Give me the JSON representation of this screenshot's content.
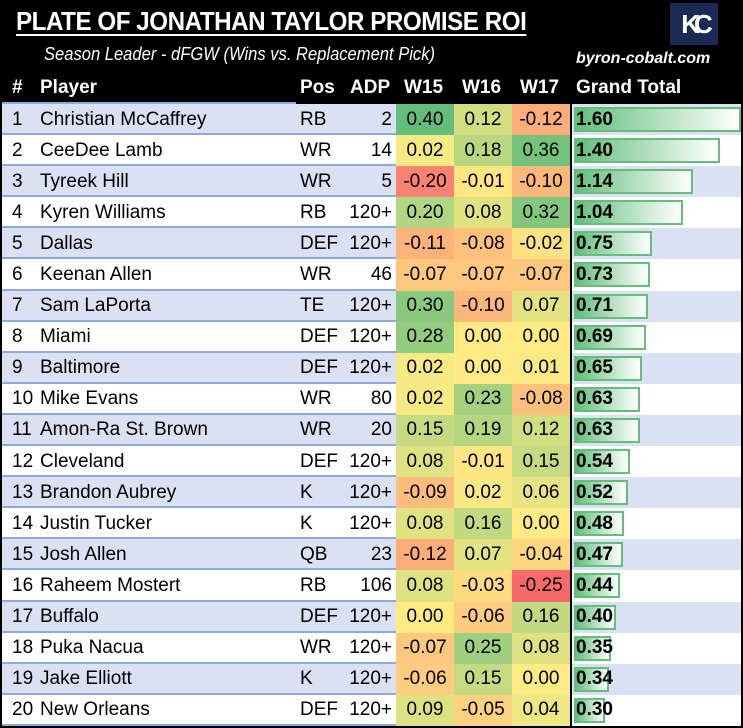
{
  "title": "PLATE OF JONATHAN TAYLOR PROMISE ROI",
  "subtitle": "Season Leader - dFGW (Wins vs. Replacement Pick)",
  "site": "byron-cobalt.com",
  "logo": "KC",
  "columns": [
    "#",
    "Player",
    "Pos",
    "ADP",
    "W15",
    "W16",
    "W17",
    "Grand Total"
  ],
  "colors": {
    "red": "#f8696b",
    "yellow": "#ffeb84",
    "green": "#63be7b",
    "row_alt": "#d9e1f2"
  },
  "rows": [
    [
      "1",
      "Christian McCaffrey",
      "RB",
      "2",
      "0.40",
      "0.12",
      "-0.12",
      "1.60"
    ],
    [
      "2",
      "CeeDee Lamb",
      "WR",
      "14",
      "0.02",
      "0.18",
      "0.36",
      "1.40"
    ],
    [
      "3",
      "Tyreek Hill",
      "WR",
      "5",
      "-0.20",
      "-0.01",
      "-0.10",
      "1.14"
    ],
    [
      "4",
      "Kyren Williams",
      "RB",
      "120+",
      "0.20",
      "0.08",
      "0.32",
      "1.04"
    ],
    [
      "5",
      "Dallas",
      "DEF",
      "120+",
      "-0.11",
      "-0.08",
      "-0.02",
      "0.75"
    ],
    [
      "6",
      "Keenan Allen",
      "WR",
      "46",
      "-0.07",
      "-0.07",
      "-0.07",
      "0.73"
    ],
    [
      "7",
      "Sam LaPorta",
      "TE",
      "120+",
      "0.30",
      "-0.10",
      "0.07",
      "0.71"
    ],
    [
      "8",
      "Miami",
      "DEF",
      "120+",
      "0.28",
      "0.00",
      "0.00",
      "0.69"
    ],
    [
      "9",
      "Baltimore",
      "DEF",
      "120+",
      "0.02",
      "0.00",
      "0.01",
      "0.65"
    ],
    [
      "10",
      "Mike Evans",
      "WR",
      "80",
      "0.02",
      "0.23",
      "-0.08",
      "0.63"
    ],
    [
      "11",
      "Amon-Ra St. Brown",
      "WR",
      "20",
      "0.15",
      "0.19",
      "0.12",
      "0.63"
    ],
    [
      "12",
      "Cleveland",
      "DEF",
      "120+",
      "0.08",
      "-0.01",
      "0.15",
      "0.54"
    ],
    [
      "13",
      "Brandon Aubrey",
      "K",
      "120+",
      "-0.09",
      "0.02",
      "0.06",
      "0.52"
    ],
    [
      "14",
      "Justin Tucker",
      "K",
      "120+",
      "0.08",
      "0.16",
      "0.00",
      "0.48"
    ],
    [
      "15",
      "Josh Allen",
      "QB",
      "23",
      "-0.12",
      "0.07",
      "-0.04",
      "0.47"
    ],
    [
      "16",
      "Raheem Mostert",
      "RB",
      "106",
      "0.08",
      "-0.03",
      "-0.25",
      "0.44"
    ],
    [
      "17",
      "Buffalo",
      "DEF",
      "120+",
      "0.00",
      "-0.06",
      "0.16",
      "0.40"
    ],
    [
      "18",
      "Puka Nacua",
      "WR",
      "120+",
      "-0.07",
      "0.25",
      "0.08",
      "0.35"
    ],
    [
      "19",
      "Jake Elliott",
      "K",
      "120+",
      "-0.06",
      "0.15",
      "0.00",
      "0.34"
    ],
    [
      "20",
      "New Orleans",
      "DEF",
      "120+",
      "0.09",
      "-0.05",
      "0.04",
      "0.30"
    ]
  ]
}
